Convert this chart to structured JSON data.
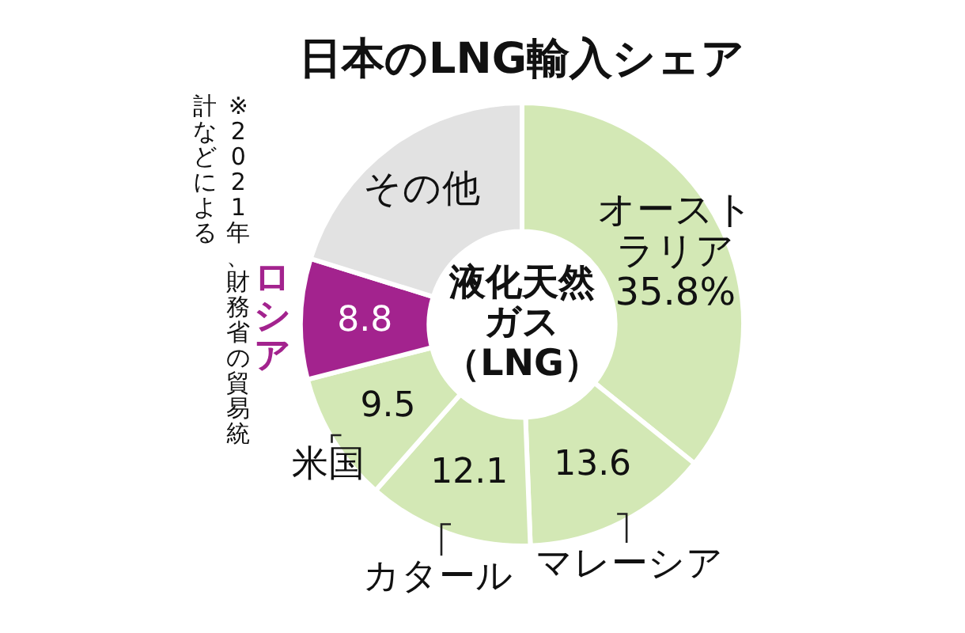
{
  "chart_data": {
    "type": "donut",
    "title": "日本のLNG輸入シェア",
    "categories": [
      "オーストラリア",
      "マレーシア",
      "カタール",
      "米国",
      "ロシア",
      "その他"
    ],
    "values": [
      35.8,
      13.6,
      12.1,
      9.5,
      8.8,
      20.2
    ],
    "colors": [
      "#d3e8b5",
      "#d3e8b5",
      "#d3e8b5",
      "#d3e8b5",
      "#a3238e",
      "#e2e2e2"
    ],
    "value_labels": [
      "35.8%",
      "13.6",
      "12.1",
      "9.5",
      "8.8",
      null
    ],
    "annotations": [
      "液化天然ガス（LNG）",
      "※2021年、財務省の貿易統計などによる"
    ]
  }
}
